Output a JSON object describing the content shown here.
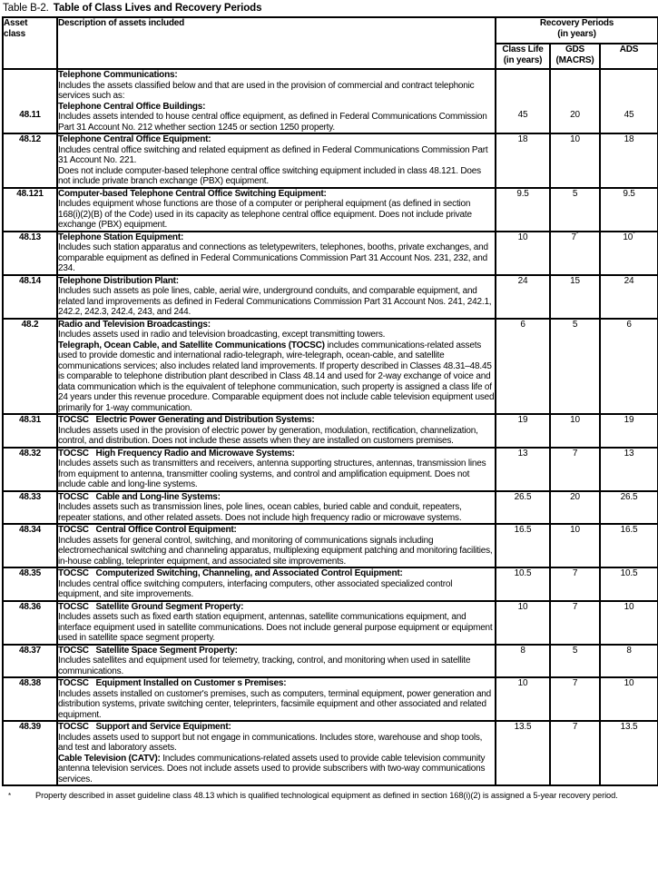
{
  "title": {
    "prefix": "Table B-2.",
    "main": "Table of Class Lives and Recovery Periods"
  },
  "table": {
    "headers": {
      "asset_class": "Asset\nclass",
      "description": "Description of assets included",
      "recovery_periods": "Recovery Periods\n(in years)",
      "class_life": "Class Life\n(in years)",
      "gds": "GDS\n(MACRS)",
      "ads": "ADS"
    },
    "rows": [
      {
        "asset_class": "48.11",
        "description": [
          {
            "b": "Telephone Communications:",
            "t": ""
          },
          {
            "b": "",
            "t": "Includes the assets classified below and that are used in the provision of commercial and contract telephonic services such as:"
          },
          {
            "b": "Telephone Central Office Buildings:",
            "t": ""
          },
          {
            "b": "",
            "t": "Includes assets intended to house central office equipment, as defined in Federal Communications Commission Part 31 Account No. 212 whether section 1245 or section 1250 property."
          }
        ],
        "class_life": "45",
        "gds": "20",
        "ads": "45"
      },
      {
        "asset_class": "48.12",
        "description": [
          {
            "b": "Telephone Central Office Equipment:",
            "t": ""
          },
          {
            "b": "",
            "t": "Includes central office switching and related equipment as defined in Federal Communications Commission Part 31 Account No. 221."
          },
          {
            "b": "",
            "t": "Does not include computer-based telephone central office switching equipment included in class 48.121. Does not include private branch exchange (PBX) equipment."
          }
        ],
        "class_life": "18",
        "gds": "10",
        "ads": "18"
      },
      {
        "asset_class": "48.121",
        "description": [
          {
            "b": "Computer-based Telephone Central Office Switching Equipment:",
            "t": ""
          },
          {
            "b": "",
            "t": "Includes equipment whose functions are those of a computer or peripheral equipment (as defined in section 168(i)(2)(B) of the Code) used in its capacity as telephone central office equipment. Does not include private exchange (PBX) equipment."
          }
        ],
        "class_life": "9.5",
        "gds": "5",
        "ads": "9.5"
      },
      {
        "asset_class": "48.13",
        "description": [
          {
            "b": "Telephone Station Equipment:",
            "t": ""
          },
          {
            "b": "",
            "t": "Includes such station apparatus and connections as teletypewriters, telephones, booths, private exchanges, and comparable equipment as defined in Federal Communications Commission Part 31 Account Nos. 231, 232, and 234."
          }
        ],
        "class_life": "10",
        "gds": "7*",
        "ads": "10*"
      },
      {
        "asset_class": "48.14",
        "description": [
          {
            "b": "Telephone Distribution Plant:",
            "t": ""
          },
          {
            "b": "",
            "t": "Includes such assets as pole lines, cable, aerial wire, underground conduits, and comparable equipment, and related land improvements as defined in Federal Communications Commission Part 31 Account Nos. 241, 242.1, 242.2, 242.3, 242.4, 243, and 244."
          }
        ],
        "class_life": "24",
        "gds": "15",
        "ads": "24"
      },
      {
        "asset_class": "48.2",
        "description": [
          {
            "b": "Radio and Television Broadcastings:",
            "t": ""
          },
          {
            "b": "",
            "t": "Includes assets used in radio and television broadcasting, except transmitting towers."
          },
          {
            "b": "Telegraph, Ocean Cable, and Satellite Communications (TOCSC)",
            "t": "includes communications-related assets used to provide domestic and international radio-telegraph, wire-telegraph, ocean-cable, and satellite communications services; also includes related land improvements. If property described in Classes 48.31–48.45 is comparable to telephone distribution plant described in Class 48.14 and used for 2-way exchange of voice and data communication which is the equivalent of telephone communication, such property is assigned a class life of 24 years under this revenue procedure. Comparable equipment does not include cable television equipment used primarily for 1-way communication."
          }
        ],
        "class_life": "6",
        "gds": "5",
        "ads": "6"
      },
      {
        "asset_class": "48.31",
        "description": [
          {
            "b": "TOCSC   Electric Power Generating and Distribution Systems:",
            "t": ""
          },
          {
            "b": "",
            "t": "Includes assets used in the provision of electric power by generation, modulation, rectification, channelization, control, and distribution. Does not include these assets when they are installed on customers premises."
          }
        ],
        "class_life": "19",
        "gds": "10",
        "ads": "19"
      },
      {
        "asset_class": "48.32",
        "description": [
          {
            "b": "TOCSC   High Frequency Radio and Microwave Systems:",
            "t": ""
          },
          {
            "b": "",
            "t": "Includes assets such as transmitters and receivers, antenna supporting structures, antennas, transmission lines from equipment to antenna, transmitter cooling systems, and control and amplification equipment. Does not include cable and long-line systems."
          }
        ],
        "class_life": "13",
        "gds": "7",
        "ads": "13"
      },
      {
        "asset_class": "48.33",
        "description": [
          {
            "b": "TOCSC   Cable and Long-line Systems:",
            "t": ""
          },
          {
            "b": "",
            "t": "Includes assets such as transmission lines, pole lines, ocean cables, buried cable and conduit, repeaters, repeater stations, and other related assets. Does not include high frequency radio or microwave systems."
          }
        ],
        "class_life": "26.5",
        "gds": "20",
        "ads": "26.5"
      },
      {
        "asset_class": "48.34",
        "description": [
          {
            "b": "TOCSC   Central Office Control Equipment:",
            "t": ""
          },
          {
            "b": "",
            "t": "Includes assets for general control, switching, and monitoring of communications signals including electromechanical switching and channeling apparatus, multiplexing equipment patching and monitoring facilities, in-house cabling, teleprinter equipment, and associated site improvements."
          }
        ],
        "class_life": "16.5",
        "gds": "10",
        "ads": "16.5"
      },
      {
        "asset_class": "48.35",
        "description": [
          {
            "b": "TOCSC   Computerized Switching, Channeling, and Associated Control Equipment:",
            "t": ""
          },
          {
            "b": "",
            "t": "Includes central office switching computers, interfacing computers, other associated specialized control equipment, and site improvements."
          }
        ],
        "class_life": "10.5",
        "gds": "7",
        "ads": "10.5"
      },
      {
        "asset_class": "48.36",
        "description": [
          {
            "b": "TOCSC   Satellite Ground Segment Property:",
            "t": ""
          },
          {
            "b": "",
            "t": "Includes assets such as fixed earth station equipment, antennas, satellite communications equipment, and interface equipment used in satellite communications. Does not include general purpose equipment or equipment used in satellite space segment property."
          }
        ],
        "class_life": "10",
        "gds": "7",
        "ads": "10"
      },
      {
        "asset_class": "48.37",
        "description": [
          {
            "b": "TOCSC   Satellite Space Segment Property:",
            "t": ""
          },
          {
            "b": "",
            "t": "Includes satellites and equipment used for telemetry, tracking, control, and monitoring when used in satellite communications."
          }
        ],
        "class_life": "8",
        "gds": "5",
        "ads": "8"
      },
      {
        "asset_class": "48.38",
        "description": [
          {
            "b": "TOCSC   Equipment Installed on Customer s Premises:",
            "t": ""
          },
          {
            "b": "",
            "t": "Includes assets installed on customer's premises, such as computers, terminal equipment, power generation and distribution systems, private switching center, teleprinters, facsimile equipment and other associated and related equipment."
          }
        ],
        "class_life": "10",
        "gds": "7",
        "ads": "10"
      },
      {
        "asset_class": "48.39",
        "description": [
          {
            "b": "TOCSC   Support and Service Equipment:",
            "t": ""
          },
          {
            "b": "",
            "t": "Includes assets used to support but not engage in communications. Includes store, warehouse and shop tools, and test and laboratory assets."
          },
          {
            "b": "Cable Television (CATV):",
            "t": "Includes communications-related assets used to provide cable television community antenna television services. Does not include assets used to provide subscribers with two-way communications services."
          }
        ],
        "class_life": "13.5",
        "gds": "7",
        "ads": "13.5"
      }
    ]
  },
  "footnote": {
    "marker": "*",
    "text": "Property described in asset guideline class 48.13 which is qualified technological equipment as defined in section 168(i)(2) is assigned a 5-year recovery period."
  }
}
